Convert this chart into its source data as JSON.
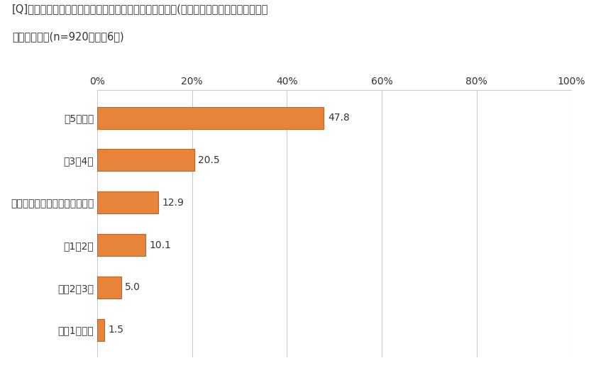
{
  "title_line1": "[Q]普段、あなたがお弁当を作る頻度を教えてください。(おにぎり、サンドイッチなども",
  "title_line2": "含みます）。(n=920、上位6つ)",
  "categories": [
    "週5回以上",
    "週3〜4回",
    "行事・行楽のときなど不定期に",
    "週1〜2回",
    "月に2〜3回",
    "月に1回程度"
  ],
  "values": [
    47.8,
    20.5,
    12.9,
    10.1,
    5.0,
    1.5
  ],
  "bar_color": "#E8833A",
  "bar_edge_color": "#C86020",
  "background_color": "#FFFFFF",
  "text_color": "#333333",
  "grid_color": "#CCCCCC",
  "xlim": [
    0,
    100
  ],
  "xticks": [
    0,
    20,
    40,
    60,
    80,
    100
  ],
  "xticklabels": [
    "0%",
    "20%",
    "40%",
    "60%",
    "80%",
    "100%"
  ],
  "title_fontsize": 10.5,
  "label_fontsize": 10,
  "value_fontsize": 10,
  "tick_fontsize": 10,
  "bar_height": 0.52
}
